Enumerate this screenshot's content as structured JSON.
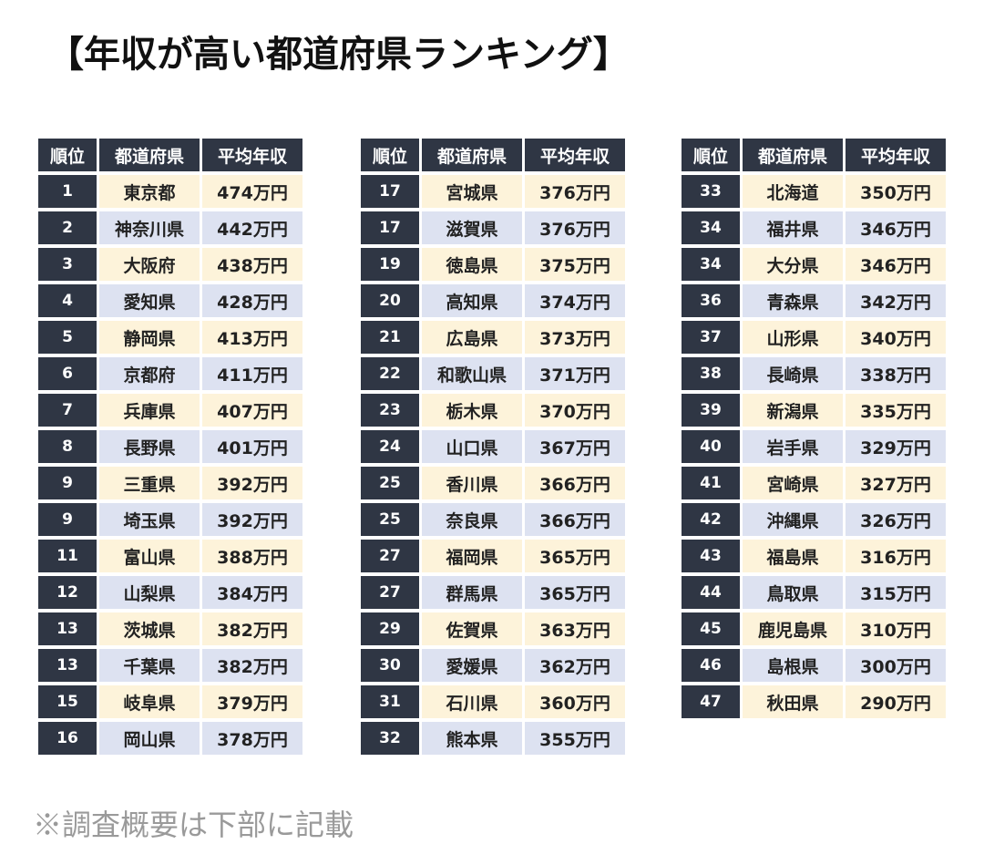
{
  "title": "【年収が高い都道府県ランキング】",
  "headers": {
    "rank": "順位",
    "prefecture": "都道府県",
    "income": "平均年収"
  },
  "rows": [
    {
      "rank": "1",
      "prefecture": "東京都",
      "income": "474万円"
    },
    {
      "rank": "2",
      "prefecture": "神奈川県",
      "income": "442万円"
    },
    {
      "rank": "3",
      "prefecture": "大阪府",
      "income": "438万円"
    },
    {
      "rank": "4",
      "prefecture": "愛知県",
      "income": "428万円"
    },
    {
      "rank": "5",
      "prefecture": "静岡県",
      "income": "413万円"
    },
    {
      "rank": "6",
      "prefecture": "京都府",
      "income": "411万円"
    },
    {
      "rank": "7",
      "prefecture": "兵庫県",
      "income": "407万円"
    },
    {
      "rank": "8",
      "prefecture": "長野県",
      "income": "401万円"
    },
    {
      "rank": "9",
      "prefecture": "三重県",
      "income": "392万円"
    },
    {
      "rank": "9",
      "prefecture": "埼玉県",
      "income": "392万円"
    },
    {
      "rank": "11",
      "prefecture": "富山県",
      "income": "388万円"
    },
    {
      "rank": "12",
      "prefecture": "山梨県",
      "income": "384万円"
    },
    {
      "rank": "13",
      "prefecture": "茨城県",
      "income": "382万円"
    },
    {
      "rank": "13",
      "prefecture": "千葉県",
      "income": "382万円"
    },
    {
      "rank": "15",
      "prefecture": "岐阜県",
      "income": "379万円"
    },
    {
      "rank": "16",
      "prefecture": "岡山県",
      "income": "378万円"
    },
    {
      "rank": "17",
      "prefecture": "宮城県",
      "income": "376万円"
    },
    {
      "rank": "17",
      "prefecture": "滋賀県",
      "income": "376万円"
    },
    {
      "rank": "19",
      "prefecture": "徳島県",
      "income": "375万円"
    },
    {
      "rank": "20",
      "prefecture": "高知県",
      "income": "374万円"
    },
    {
      "rank": "21",
      "prefecture": "広島県",
      "income": "373万円"
    },
    {
      "rank": "22",
      "prefecture": "和歌山県",
      "income": "371万円"
    },
    {
      "rank": "23",
      "prefecture": "栃木県",
      "income": "370万円"
    },
    {
      "rank": "24",
      "prefecture": "山口県",
      "income": "367万円"
    },
    {
      "rank": "25",
      "prefecture": "香川県",
      "income": "366万円"
    },
    {
      "rank": "25",
      "prefecture": "奈良県",
      "income": "366万円"
    },
    {
      "rank": "27",
      "prefecture": "福岡県",
      "income": "365万円"
    },
    {
      "rank": "27",
      "prefecture": "群馬県",
      "income": "365万円"
    },
    {
      "rank": "29",
      "prefecture": "佐賀県",
      "income": "363万円"
    },
    {
      "rank": "30",
      "prefecture": "愛媛県",
      "income": "362万円"
    },
    {
      "rank": "31",
      "prefecture": "石川県",
      "income": "360万円"
    },
    {
      "rank": "32",
      "prefecture": "熊本県",
      "income": "355万円"
    },
    {
      "rank": "33",
      "prefecture": "北海道",
      "income": "350万円"
    },
    {
      "rank": "34",
      "prefecture": "福井県",
      "income": "346万円"
    },
    {
      "rank": "34",
      "prefecture": "大分県",
      "income": "346万円"
    },
    {
      "rank": "36",
      "prefecture": "青森県",
      "income": "342万円"
    },
    {
      "rank": "37",
      "prefecture": "山形県",
      "income": "340万円"
    },
    {
      "rank": "38",
      "prefecture": "長崎県",
      "income": "338万円"
    },
    {
      "rank": "39",
      "prefecture": "新潟県",
      "income": "335万円"
    },
    {
      "rank": "40",
      "prefecture": "岩手県",
      "income": "329万円"
    },
    {
      "rank": "41",
      "prefecture": "宮崎県",
      "income": "327万円"
    },
    {
      "rank": "42",
      "prefecture": "沖縄県",
      "income": "326万円"
    },
    {
      "rank": "43",
      "prefecture": "福島県",
      "income": "316万円"
    },
    {
      "rank": "44",
      "prefecture": "鳥取県",
      "income": "315万円"
    },
    {
      "rank": "45",
      "prefecture": "鹿児島県",
      "income": "310万円"
    },
    {
      "rank": "46",
      "prefecture": "島根県",
      "income": "300万円"
    },
    {
      "rank": "47",
      "prefecture": "秋田県",
      "income": "290万円"
    }
  ],
  "colors": {
    "header_bg": "#2f3644",
    "row_odd": "#fdf3da",
    "row_even": "#dde2f1"
  },
  "footnote": "※調査概要は下部に記載"
}
